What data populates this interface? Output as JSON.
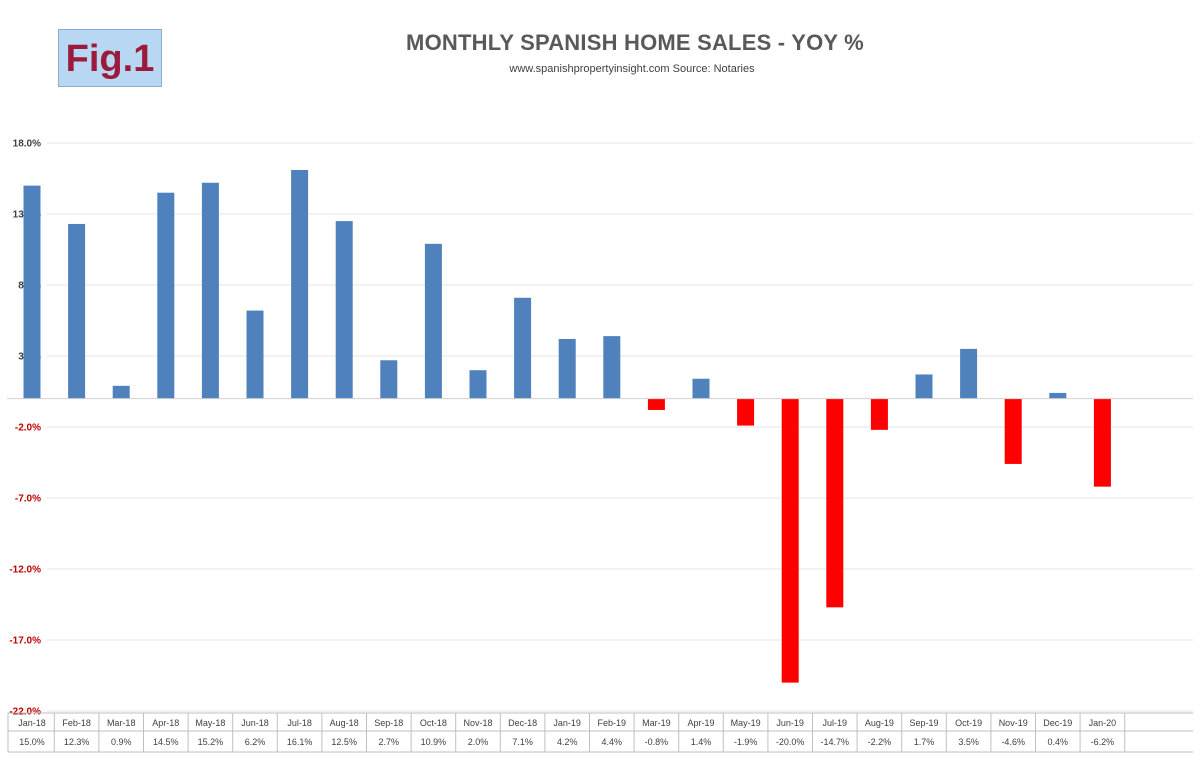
{
  "badge": {
    "label": "Fig.1"
  },
  "colors": {
    "positive": "#4f81bd",
    "negative": "#ff0000",
    "tick_positive": "#404040",
    "tick_negative": "#c00000",
    "grid": "#e6e6e6",
    "table_border": "#bfbfbf"
  },
  "chart_data": {
    "type": "bar",
    "title": "MONTHLY SPANISH HOME SALES - YOY %",
    "subtitle": "www.spanishpropertyinsight.com Source: Notaries",
    "xlabel": "",
    "ylabel": "",
    "ylim": [
      -22,
      18
    ],
    "yticks": [
      18,
      13,
      8,
      3,
      -2,
      -7,
      -12,
      -17,
      -22
    ],
    "ytick_labels": [
      "18.0%",
      "13.0%",
      "8.0%",
      "3.0%",
      "-2.0%",
      "-7.0%",
      "-12.0%",
      "-17.0%",
      "-22.0%"
    ],
    "grid": true,
    "legend": "none",
    "categories": [
      "Jan-18",
      "Feb-18",
      "Mar-18",
      "Apr-18",
      "May-18",
      "Jun-18",
      "Jul-18",
      "Aug-18",
      "Sep-18",
      "Oct-18",
      "Nov-18",
      "Dec-18",
      "Jan-19",
      "Feb-19",
      "Mar-19",
      "Apr-19",
      "May-19",
      "Jun-19",
      "Jul-19",
      "Aug-19",
      "Sep-19",
      "Oct-19",
      "Nov-19",
      "Dec-19",
      "Jan-20"
    ],
    "values": [
      15.0,
      12.3,
      0.9,
      14.5,
      15.2,
      6.2,
      16.1,
      12.5,
      2.7,
      10.9,
      2.0,
      7.1,
      4.2,
      4.4,
      -0.8,
      1.4,
      -1.9,
      -20.0,
      -14.7,
      -2.2,
      1.7,
      3.5,
      -4.6,
      0.4,
      -6.2
    ],
    "value_labels": [
      "15.0%",
      "12.3%",
      "0.9%",
      "14.5%",
      "15.2%",
      "6.2%",
      "16.1%",
      "12.5%",
      "2.7%",
      "10.9%",
      "2.0%",
      "7.1%",
      "4.2%",
      "4.4%",
      "-0.8%",
      "1.4%",
      "-1.9%",
      "-20.0%",
      "-14.7%",
      "-2.2%",
      "1.7%",
      "3.5%",
      "-4.6%",
      "0.4%",
      "-6.2%"
    ]
  }
}
